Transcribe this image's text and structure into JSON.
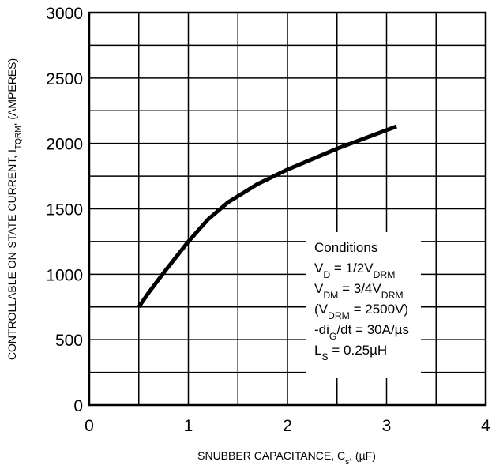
{
  "chart_data": {
    "type": "line",
    "x_label": [
      "SNUBBER CAPACITANCE, C",
      "s",
      ", (µF)"
    ],
    "y_label": [
      "CONTROLLABLE ON-STATE CURRENT, I",
      "TQRM",
      ", (AMPERES)"
    ],
    "annotation": [
      [
        "Conditions"
      ],
      [
        "V",
        "D",
        " = 1/2V",
        "DRM"
      ],
      [
        "V",
        "DM",
        " = 3/4V",
        "DRM"
      ],
      [
        "(V",
        "DRM",
        " = 2500V)"
      ],
      [
        "-di",
        "G",
        "/dt = 30A/µs"
      ],
      [
        "L",
        "S",
        " = 0.25µH"
      ]
    ],
    "series": [
      {
        "color": "#000000",
        "x": [
          0.5,
          0.6,
          0.75,
          1,
          1.2,
          1.4,
          1.7,
          2,
          2.5,
          3.1
        ],
        "values": [
          750,
          860,
          1010,
          1250,
          1420,
          1550,
          1690,
          1800,
          1960,
          2130
        ]
      }
    ],
    "xlim": [
      0,
      4
    ],
    "xticks": [
      0,
      1,
      2,
      3,
      4
    ],
    "ylim": [
      0,
      3000
    ],
    "yticks": [
      0,
      500,
      1000,
      1500,
      2000,
      2500,
      3000
    ],
    "minor_xticks": [
      0.5,
      1.5,
      2.5,
      3.5
    ],
    "minor_yticks": [
      250,
      750,
      1250,
      1750,
      2250,
      2750
    ],
    "grid": true
  }
}
